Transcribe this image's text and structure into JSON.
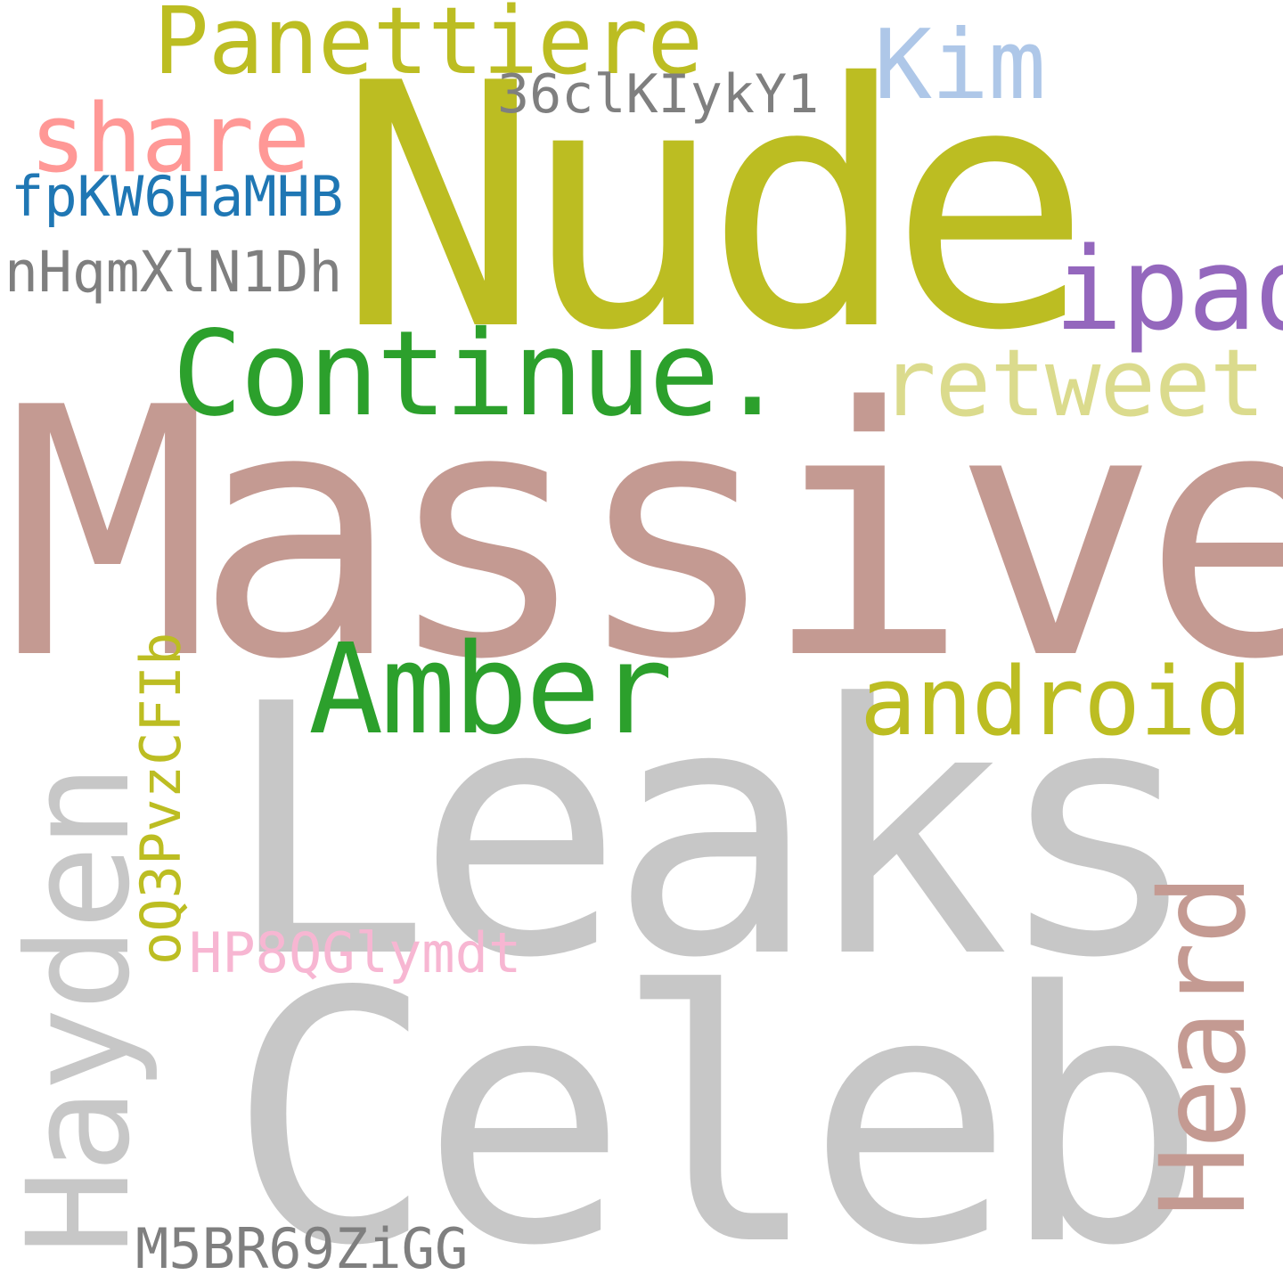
{
  "words": {
    "massive": {
      "text": "Massive",
      "color": "#c49a92"
    },
    "leaks": {
      "text": "Leaks",
      "color": "#c7c7c7"
    },
    "celeb": {
      "text": "Celeb",
      "color": "#c7c7c7"
    },
    "nude": {
      "text": "Nude",
      "color": "#bcbd22"
    },
    "continue": {
      "text": "Continue.",
      "color": "#2ca02c"
    },
    "amber": {
      "text": "Amber",
      "color": "#2ca02c"
    },
    "hayden": {
      "text": "Hayden",
      "color": "#c7c7c7"
    },
    "heard": {
      "text": "Heard",
      "color": "#c49a92"
    },
    "panettiere": {
      "text": "Panettiere",
      "color": "#bcbd22"
    },
    "kim": {
      "text": "Kim",
      "color": "#aec7e8"
    },
    "share": {
      "text": "share",
      "color": "#ff9896"
    },
    "ipad": {
      "text": "ipad",
      "color": "#9467bd"
    },
    "retweet": {
      "text": "retweet",
      "color": "#dbdb8d"
    },
    "android": {
      "text": "android",
      "color": "#bcbd22"
    },
    "code1": {
      "text": "36clKIykY1",
      "color": "#7f7f7f"
    },
    "code2": {
      "text": "fpKW6HaMHB",
      "color": "#1f77b4"
    },
    "code3": {
      "text": "nHqmXlN1Dh",
      "color": "#7f7f7f"
    },
    "code4": {
      "text": "oQ3PvzCFIb",
      "color": "#bcbd22"
    },
    "code5": {
      "text": "HP8QGlymdt",
      "color": "#f7b6d2"
    },
    "code6": {
      "text": "M5BR69ZiGG",
      "color": "#7f7f7f"
    }
  }
}
